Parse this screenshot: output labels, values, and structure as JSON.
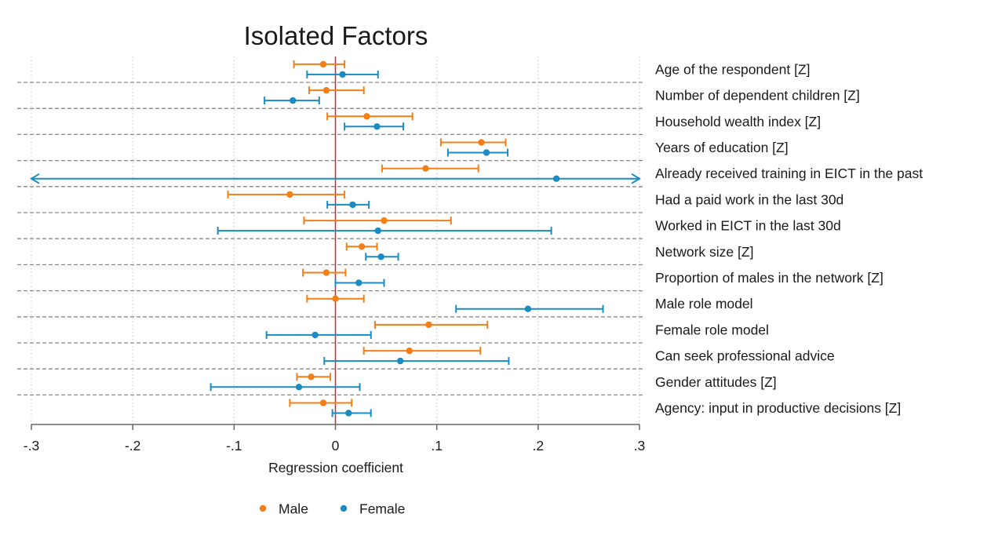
{
  "chart_data": {
    "type": "scatter",
    "subtype": "coefficient-plot",
    "title": "Isolated Factors",
    "xlabel": "Regression coefficient",
    "xlim": [
      -0.3,
      0.3
    ],
    "x_ticks": [
      -0.3,
      -0.2,
      -0.1,
      0,
      0.1,
      0.2,
      0.3
    ],
    "x_tick_labels": [
      "-.3",
      "-.2",
      "-.1",
      "0",
      ".1",
      ".2",
      ".3"
    ],
    "reference_line": {
      "x": 0,
      "color": "#d62728"
    },
    "grid": true,
    "legend_position": "bottom",
    "categories": [
      "Age of the respondent [Z]",
      "Number of dependent children [Z]",
      "Household wealth index [Z]",
      "Years of education [Z]",
      "Already received training in EICT in the past",
      "Had a paid work in the last 30d",
      "Worked in EICT in the last 30d",
      "Network size [Z]",
      "Proportion of males in the network [Z]",
      "Male role model",
      "Female role model",
      "Can seek professional advice",
      "Gender attitudes [Z]",
      "Agency: input in productive decisions [Z]"
    ],
    "series": [
      {
        "name": "Male",
        "color": "#f47f17",
        "values": [
          -0.012,
          -0.009,
          0.031,
          0.144,
          0.089,
          -0.045,
          0.048,
          0.026,
          -0.009,
          0.0,
          0.092,
          0.073,
          -0.024,
          -0.012
        ],
        "ci_low": [
          -0.041,
          -0.026,
          -0.008,
          0.104,
          0.046,
          -0.106,
          -0.031,
          0.011,
          -0.032,
          -0.028,
          0.039,
          0.028,
          -0.038,
          -0.045
        ],
        "ci_high": [
          0.009,
          0.028,
          0.076,
          0.168,
          0.141,
          0.009,
          0.114,
          0.041,
          0.01,
          0.028,
          0.15,
          0.143,
          -0.005,
          0.016
        ]
      },
      {
        "name": "Female",
        "color": "#1a8cc1",
        "values": [
          0.007,
          -0.042,
          0.041,
          0.149,
          0.218,
          0.017,
          0.042,
          0.045,
          0.023,
          0.19,
          -0.02,
          0.064,
          -0.036,
          0.013
        ],
        "ci_low": [
          -0.028,
          -0.07,
          0.009,
          0.111,
          -0.3,
          -0.008,
          -0.116,
          0.03,
          0.0,
          0.119,
          -0.068,
          -0.011,
          -0.123,
          -0.003
        ],
        "ci_high": [
          0.042,
          -0.016,
          0.067,
          0.17,
          0.3,
          0.033,
          0.213,
          0.062,
          0.048,
          0.264,
          0.035,
          0.171,
          0.024,
          0.035
        ],
        "ci_truncated": [
          false,
          false,
          false,
          false,
          true,
          false,
          false,
          false,
          false,
          false,
          false,
          false,
          false,
          false
        ]
      }
    ]
  }
}
